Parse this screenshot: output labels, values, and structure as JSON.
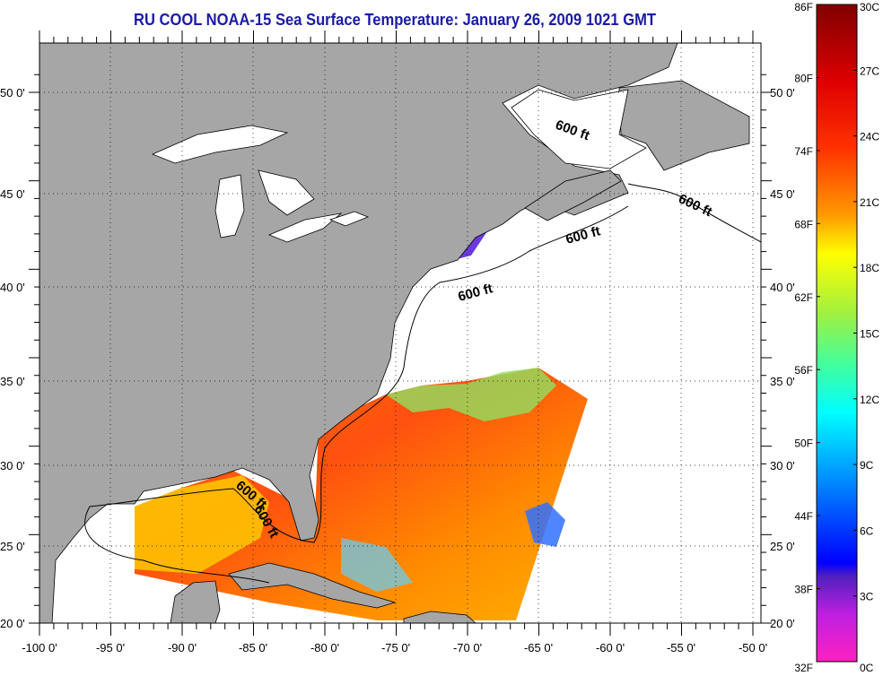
{
  "title": "RU COOL  NOAA-15  Sea Surface Temperature:  January 26, 2009 1021 GMT",
  "map": {
    "lon_labels": [
      "-100 0'",
      "-95 0'",
      "-90 0'",
      "-85 0'",
      "-80 0'",
      "-75 0'",
      "-70 0'",
      "-65 0'",
      "-60 0'",
      "-55 0'",
      "-50 0'"
    ],
    "lat_labels": [
      "50 0'",
      "45 0'",
      "40 0'",
      "35 0'",
      "30 0'",
      "25 0'",
      "20 0'"
    ],
    "contour_labels": [
      "600 ft",
      "600 ft",
      "600 ft",
      "600 ft",
      "600 ft",
      "600 ft"
    ],
    "colors": {
      "land": "#a6a6a6",
      "ocean_nodata": "#ffffff",
      "title": "#1a1aa8"
    }
  },
  "colorbar": {
    "fahrenheit_labels": [
      "86F",
      "80F",
      "74F",
      "68F",
      "62F",
      "56F",
      "50F",
      "44F",
      "38F",
      "32F"
    ],
    "celsius_labels": [
      "30C",
      "27C",
      "24C",
      "21C",
      "18C",
      "15C",
      "12C",
      "9C",
      "6C",
      "3C",
      "0C"
    ],
    "range_c": [
      0,
      30
    ],
    "range_f": [
      32,
      86
    ]
  }
}
